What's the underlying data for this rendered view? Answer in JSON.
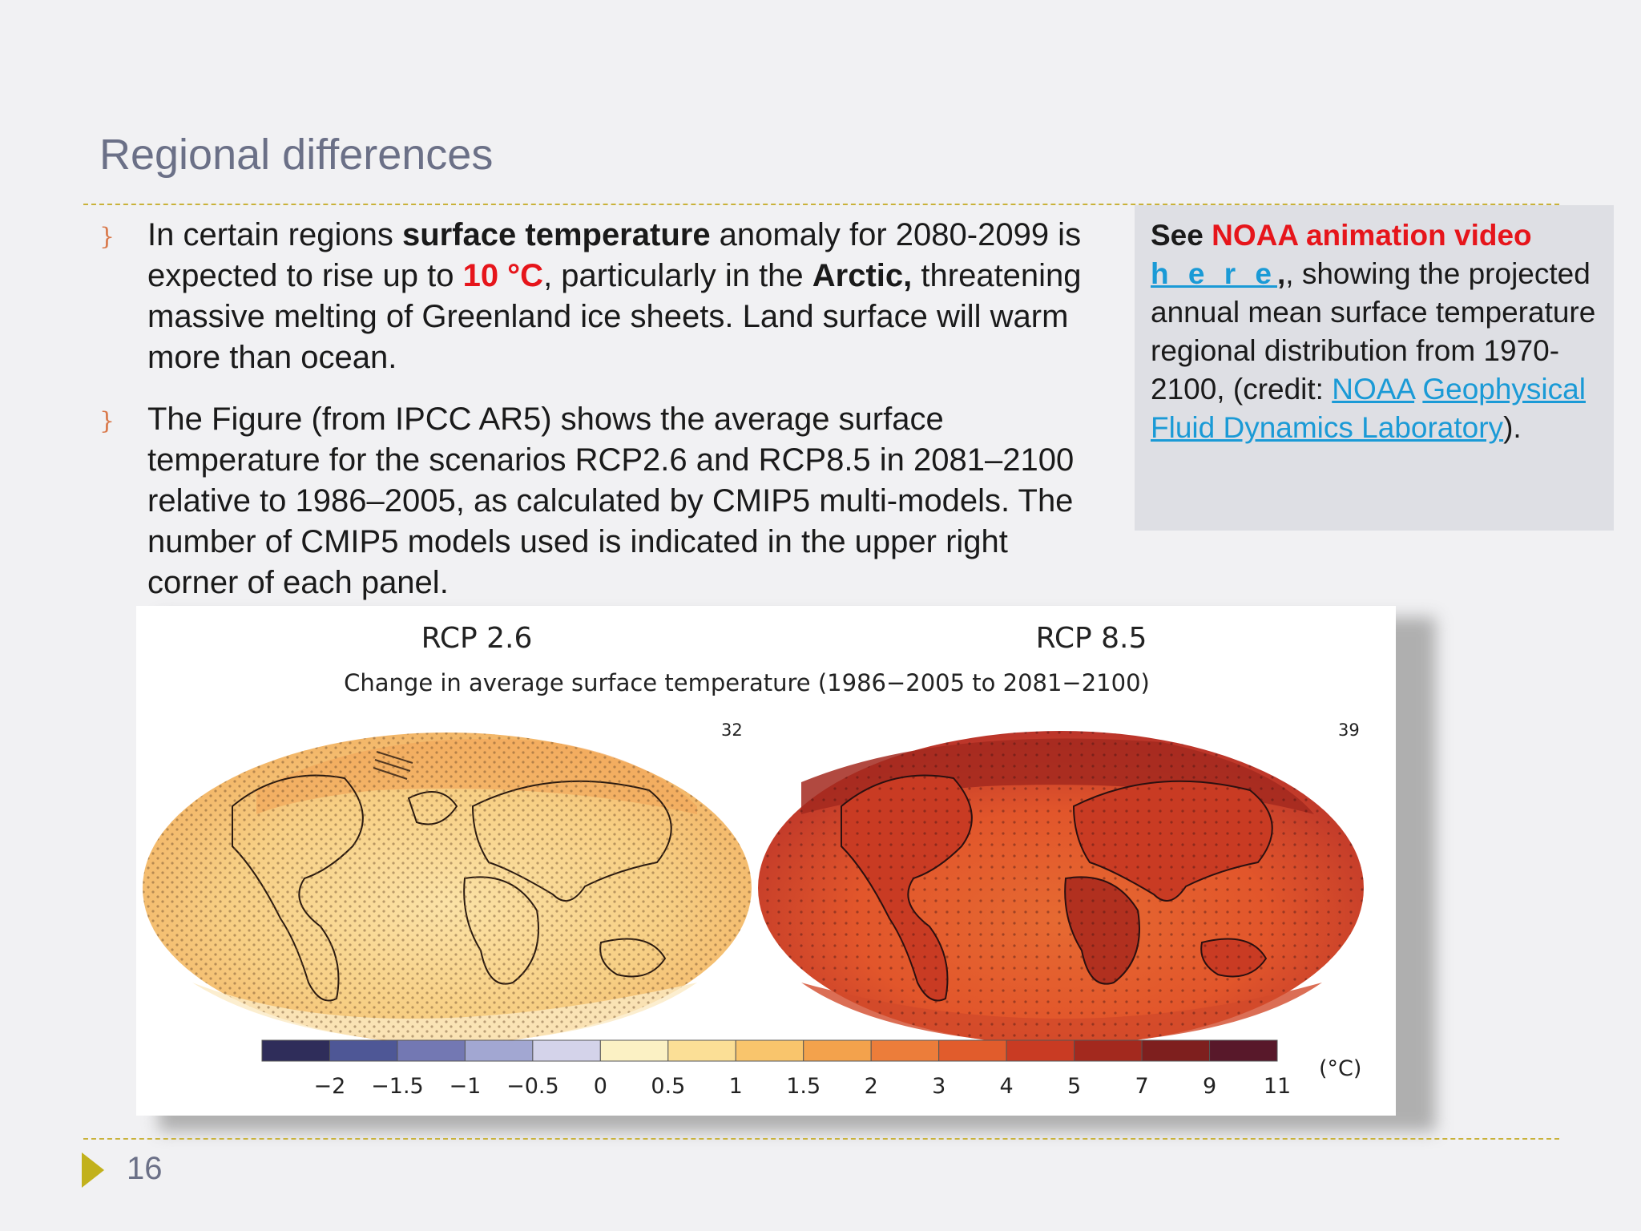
{
  "slide": {
    "title": "Regional differences",
    "page_number": "16"
  },
  "bullets": [
    {
      "mark": "}",
      "p1": "In certain regions ",
      "b1": "surface temperature",
      "p2": " anomaly for 2080-2099 is expected to rise up to ",
      "red": "10 °C",
      "p3": ",  particularly in the ",
      "b2": "Arctic,",
      "p4": " threatening massive melting of Greenland ice sheets. Land surface will warm more than ocean."
    },
    {
      "mark": "}",
      "text": "The Figure (from IPCC AR5) shows the average surface temperature for the scenarios RCP2.6 and RCP8.5 in 2081–2100 relative to 1986–2005,  as calculated by CMIP5 multi-models.  The number of CMIP5 models used  is indicated in the upper right corner of each panel."
    }
  ],
  "note": {
    "see": "See ",
    "video": "NOAA animation video",
    "here": "h e r e",
    "text1": ", showing the projected annual mean surface temperature regional distribution from 1970-2100, (credit: ",
    "link1": "NOAA",
    "link2": "Geophysical Fluid Dynamics Laboratory",
    "text2": ")."
  },
  "figure": {
    "panel_left_title": "RCP 2.6",
    "panel_right_title": "RCP 8.5",
    "subtitle": "Change in average surface temperature (1986−2005 to 2081−2100)",
    "left_models": "32",
    "right_models": "39",
    "colorbar_unit": "(°C)",
    "colorbar_ticks": [
      "−2",
      "−1.5",
      "−1",
      "−0.5",
      "0",
      "0.5",
      "1",
      "1.5",
      "2",
      "3",
      "4",
      "5",
      "7",
      "9",
      "11"
    ],
    "colorbar_colors": [
      "#2f2d5a",
      "#4e5796",
      "#7378b3",
      "#a2a7d2",
      "#d4d3ea",
      "#fbf1c4",
      "#fbdf96",
      "#f9c56c",
      "#f3a24c",
      "#ec7d3a",
      "#e15c2c",
      "#c93b23",
      "#a3291e",
      "#7e1f1e",
      "#58182a"
    ]
  }
}
